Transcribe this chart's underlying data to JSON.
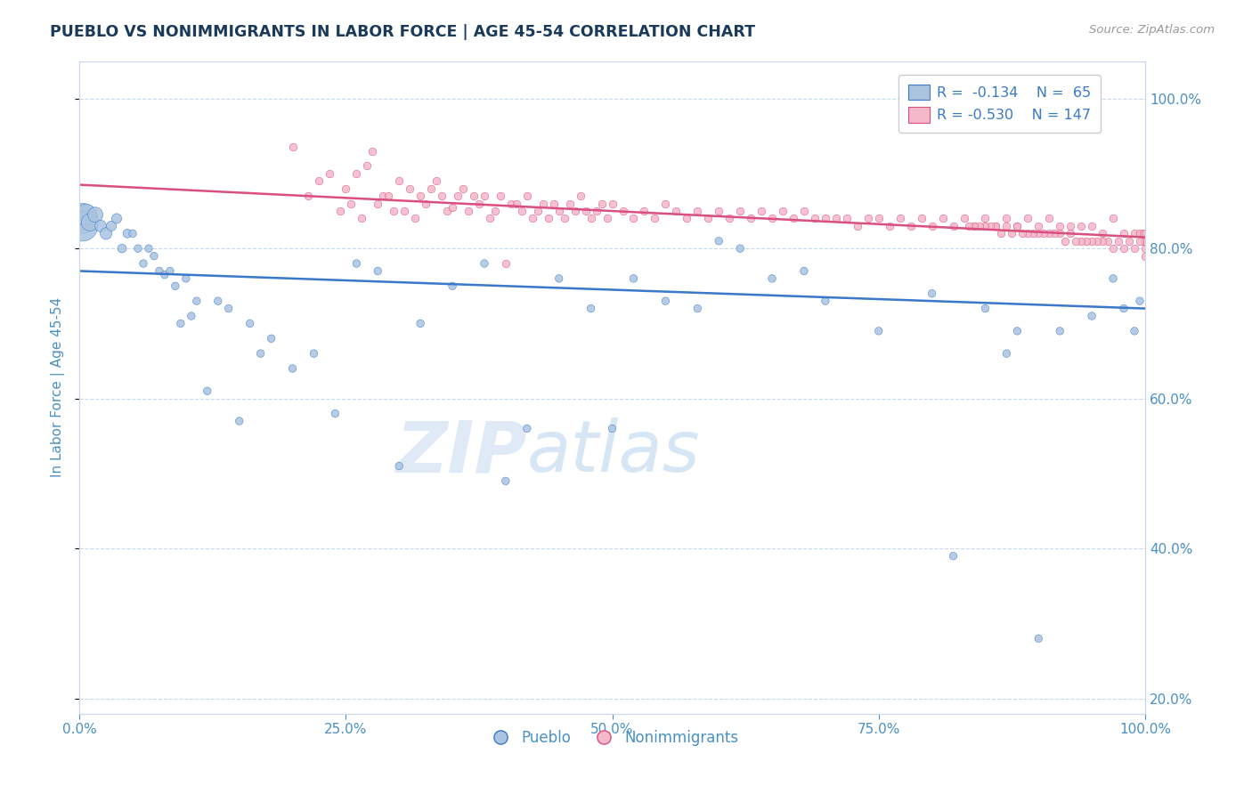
{
  "title": "PUEBLO VS NONIMMIGRANTS IN LABOR FORCE | AGE 45-54 CORRELATION CHART",
  "source_text": "Source: ZipAtlas.com",
  "ylabel": "In Labor Force | Age 45-54",
  "blue_R": -0.134,
  "blue_N": 65,
  "pink_R": -0.53,
  "pink_N": 147,
  "blue_line_x": [
    0,
    100
  ],
  "blue_line_y": [
    77.0,
    72.0
  ],
  "pink_line_x": [
    0,
    100
  ],
  "pink_line_y": [
    88.5,
    81.5
  ],
  "blue_color": "#aac4e0",
  "pink_color": "#f5b8c8",
  "blue_line_color": "#3a78c9",
  "pink_line_color": "#d94f7e",
  "watermark_zip": "ZIP",
  "watermark_atlas": "atlas",
  "legend_label_blue": "Pueblo",
  "legend_label_pink": "Nonimmigrants",
  "legend_R_color": "#3a78c9",
  "grid_color": "#c8d8ea",
  "title_color": "#1a3a5c",
  "axis_color": "#4a90c4",
  "background_color": "#ffffff",
  "ylim_min": 18,
  "ylim_max": 105,
  "xlim_min": 0,
  "xlim_max": 100,
  "blue_points": [
    [
      0.3,
      84.0
    ],
    [
      0.3,
      83.0
    ],
    [
      0.6,
      84.5
    ],
    [
      1.0,
      83.5
    ],
    [
      1.5,
      84.5
    ],
    [
      2.0,
      83.0
    ],
    [
      2.5,
      82.0
    ],
    [
      3.0,
      83.0
    ],
    [
      3.5,
      84.0
    ],
    [
      4.0,
      80.0
    ],
    [
      4.5,
      82.0
    ],
    [
      5.0,
      82.0
    ],
    [
      5.5,
      80.0
    ],
    [
      6.0,
      78.0
    ],
    [
      6.5,
      80.0
    ],
    [
      7.0,
      79.0
    ],
    [
      7.5,
      77.0
    ],
    [
      8.0,
      76.5
    ],
    [
      8.5,
      77.0
    ],
    [
      9.0,
      75.0
    ],
    [
      9.5,
      70.0
    ],
    [
      10.0,
      76.0
    ],
    [
      10.5,
      71.0
    ],
    [
      11.0,
      73.0
    ],
    [
      12.0,
      61.0
    ],
    [
      13.0,
      73.0
    ],
    [
      14.0,
      72.0
    ],
    [
      15.0,
      57.0
    ],
    [
      16.0,
      70.0
    ],
    [
      17.0,
      66.0
    ],
    [
      18.0,
      68.0
    ],
    [
      20.0,
      64.0
    ],
    [
      22.0,
      66.0
    ],
    [
      24.0,
      58.0
    ],
    [
      26.0,
      78.0
    ],
    [
      28.0,
      77.0
    ],
    [
      30.0,
      51.0
    ],
    [
      32.0,
      70.0
    ],
    [
      35.0,
      75.0
    ],
    [
      38.0,
      78.0
    ],
    [
      40.0,
      49.0
    ],
    [
      42.0,
      56.0
    ],
    [
      45.0,
      76.0
    ],
    [
      48.0,
      72.0
    ],
    [
      50.0,
      56.0
    ],
    [
      52.0,
      76.0
    ],
    [
      55.0,
      73.0
    ],
    [
      58.0,
      72.0
    ],
    [
      60.0,
      81.0
    ],
    [
      62.0,
      80.0
    ],
    [
      65.0,
      76.0
    ],
    [
      68.0,
      77.0
    ],
    [
      70.0,
      73.0
    ],
    [
      75.0,
      69.0
    ],
    [
      80.0,
      74.0
    ],
    [
      82.0,
      39.0
    ],
    [
      85.0,
      72.0
    ],
    [
      87.0,
      66.0
    ],
    [
      88.0,
      69.0
    ],
    [
      90.0,
      28.0
    ],
    [
      92.0,
      69.0
    ],
    [
      95.0,
      71.0
    ],
    [
      97.0,
      76.0
    ],
    [
      98.0,
      72.0
    ],
    [
      99.0,
      69.0
    ],
    [
      99.5,
      73.0
    ]
  ],
  "pink_points": [
    [
      20.0,
      93.5
    ],
    [
      21.5,
      87.0
    ],
    [
      22.5,
      89.0
    ],
    [
      23.5,
      90.0
    ],
    [
      24.5,
      85.0
    ],
    [
      25.0,
      88.0
    ],
    [
      25.5,
      86.0
    ],
    [
      26.0,
      90.0
    ],
    [
      26.5,
      84.0
    ],
    [
      27.0,
      91.0
    ],
    [
      27.5,
      93.0
    ],
    [
      28.0,
      86.0
    ],
    [
      28.5,
      87.0
    ],
    [
      29.0,
      87.0
    ],
    [
      29.5,
      85.0
    ],
    [
      30.0,
      89.0
    ],
    [
      30.5,
      85.0
    ],
    [
      31.0,
      88.0
    ],
    [
      31.5,
      84.0
    ],
    [
      32.0,
      87.0
    ],
    [
      32.5,
      86.0
    ],
    [
      33.0,
      88.0
    ],
    [
      33.5,
      89.0
    ],
    [
      34.0,
      87.0
    ],
    [
      34.5,
      85.0
    ],
    [
      35.0,
      85.5
    ],
    [
      35.5,
      87.0
    ],
    [
      36.0,
      88.0
    ],
    [
      36.5,
      85.0
    ],
    [
      37.0,
      87.0
    ],
    [
      37.5,
      86.0
    ],
    [
      38.0,
      87.0
    ],
    [
      38.5,
      84.0
    ],
    [
      39.0,
      85.0
    ],
    [
      39.5,
      87.0
    ],
    [
      40.0,
      78.0
    ],
    [
      40.5,
      86.0
    ],
    [
      41.0,
      86.0
    ],
    [
      41.5,
      85.0
    ],
    [
      42.0,
      87.0
    ],
    [
      42.5,
      84.0
    ],
    [
      43.0,
      85.0
    ],
    [
      43.5,
      86.0
    ],
    [
      44.0,
      84.0
    ],
    [
      44.5,
      86.0
    ],
    [
      45.0,
      85.0
    ],
    [
      45.5,
      84.0
    ],
    [
      46.0,
      86.0
    ],
    [
      46.5,
      85.0
    ],
    [
      47.0,
      87.0
    ],
    [
      47.5,
      85.0
    ],
    [
      48.0,
      84.0
    ],
    [
      48.5,
      85.0
    ],
    [
      49.0,
      86.0
    ],
    [
      49.5,
      84.0
    ],
    [
      50.0,
      86.0
    ],
    [
      51.0,
      85.0
    ],
    [
      52.0,
      84.0
    ],
    [
      53.0,
      85.0
    ],
    [
      54.0,
      84.0
    ],
    [
      55.0,
      86.0
    ],
    [
      56.0,
      85.0
    ],
    [
      57.0,
      84.0
    ],
    [
      58.0,
      85.0
    ],
    [
      59.0,
      84.0
    ],
    [
      60.0,
      85.0
    ],
    [
      61.0,
      84.0
    ],
    [
      62.0,
      85.0
    ],
    [
      63.0,
      84.0
    ],
    [
      64.0,
      85.0
    ],
    [
      65.0,
      84.0
    ],
    [
      66.0,
      85.0
    ],
    [
      67.0,
      84.0
    ],
    [
      68.0,
      85.0
    ],
    [
      69.0,
      84.0
    ],
    [
      70.0,
      84.0
    ],
    [
      71.0,
      84.0
    ],
    [
      72.0,
      84.0
    ],
    [
      73.0,
      83.0
    ],
    [
      74.0,
      84.0
    ],
    [
      75.0,
      84.0
    ],
    [
      76.0,
      83.0
    ],
    [
      77.0,
      84.0
    ],
    [
      78.0,
      83.0
    ],
    [
      79.0,
      84.0
    ],
    [
      80.0,
      83.0
    ],
    [
      81.0,
      84.0
    ],
    [
      82.0,
      83.0
    ],
    [
      83.0,
      84.0
    ],
    [
      84.0,
      83.0
    ],
    [
      85.0,
      84.0
    ],
    [
      86.0,
      83.0
    ],
    [
      87.0,
      84.0
    ],
    [
      88.0,
      83.0
    ],
    [
      89.0,
      84.0
    ],
    [
      90.0,
      83.0
    ],
    [
      91.0,
      84.0
    ],
    [
      92.0,
      83.0
    ],
    [
      93.0,
      83.0
    ],
    [
      94.0,
      83.0
    ],
    [
      95.0,
      83.0
    ],
    [
      96.0,
      82.0
    ],
    [
      97.0,
      84.0
    ],
    [
      98.0,
      82.0
    ],
    [
      99.0,
      82.0
    ],
    [
      99.5,
      82.0
    ],
    [
      99.8,
      82.0
    ],
    [
      99.9,
      81.0
    ],
    [
      100.0,
      80.0
    ],
    [
      100.0,
      79.0
    ],
    [
      100.0,
      82.0
    ],
    [
      100.0,
      81.0
    ],
    [
      99.5,
      81.0
    ],
    [
      99.0,
      80.0
    ],
    [
      98.5,
      81.0
    ],
    [
      98.0,
      80.0
    ],
    [
      97.5,
      81.0
    ],
    [
      97.0,
      80.0
    ],
    [
      96.5,
      81.0
    ],
    [
      96.0,
      81.0
    ],
    [
      95.5,
      81.0
    ],
    [
      95.0,
      81.0
    ],
    [
      94.5,
      81.0
    ],
    [
      94.0,
      81.0
    ],
    [
      93.5,
      81.0
    ],
    [
      93.0,
      82.0
    ],
    [
      92.5,
      81.0
    ],
    [
      92.0,
      82.0
    ],
    [
      91.5,
      82.0
    ],
    [
      91.0,
      82.0
    ],
    [
      90.5,
      82.0
    ],
    [
      90.0,
      82.0
    ],
    [
      89.5,
      82.0
    ],
    [
      89.0,
      82.0
    ],
    [
      88.5,
      82.0
    ],
    [
      88.0,
      83.0
    ],
    [
      87.5,
      82.0
    ],
    [
      87.0,
      83.0
    ],
    [
      86.5,
      82.0
    ],
    [
      86.0,
      83.0
    ],
    [
      85.5,
      83.0
    ],
    [
      85.0,
      83.0
    ],
    [
      84.5,
      83.0
    ],
    [
      84.0,
      83.0
    ],
    [
      83.5,
      83.0
    ]
  ]
}
